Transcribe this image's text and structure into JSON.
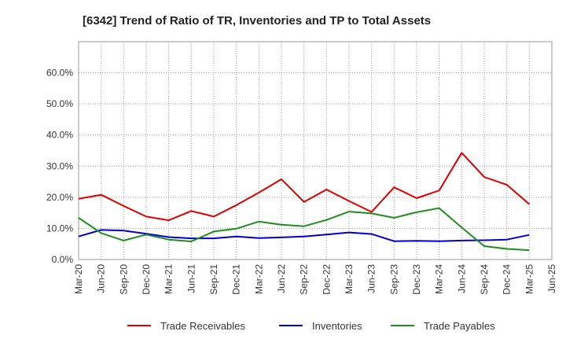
{
  "chart_data": {
    "type": "line",
    "title": "[6342]  Trend of Ratio of TR, Inventories and TP to Total Assets",
    "xlabel": "",
    "ylabel": "",
    "ylim": [
      0,
      0.7
    ],
    "yticks": [
      0,
      0.1,
      0.2,
      0.3,
      0.4,
      0.5,
      0.6
    ],
    "ytick_labels": [
      "0.0%",
      "10.0%",
      "20.0%",
      "30.0%",
      "40.0%",
      "50.0%",
      "60.0%"
    ],
    "grid": true,
    "legend_position": "bottom",
    "x_tick_labels": [
      "Mar-20",
      "Jun-20",
      "Sep-20",
      "Dec-20",
      "Mar-21",
      "Jun-21",
      "Sep-21",
      "Dec-21",
      "Mar-22",
      "Jun-22",
      "Sep-22",
      "Dec-22",
      "Mar-23",
      "Jun-23",
      "Sep-23",
      "Dec-23",
      "Mar-24",
      "Jun-24",
      "Sep-24",
      "Dec-24",
      "Mar-25",
      "Jun-25"
    ],
    "x": [
      "Mar-20",
      "Jun-20",
      "Sep-20",
      "Dec-20",
      "Mar-21",
      "Jun-21",
      "Sep-21",
      "Dec-21",
      "Mar-22",
      "Jun-22",
      "Sep-22",
      "Dec-22",
      "Mar-23",
      "Jun-23",
      "Sep-23",
      "Dec-23",
      "Mar-24",
      "Jun-24",
      "Sep-24",
      "Dec-24",
      "Mar-25"
    ],
    "series": [
      {
        "name": "Trade Receivables",
        "color": "#e00000",
        "values": [
          0.195,
          0.208,
          0.172,
          0.138,
          0.126,
          0.156,
          0.138,
          0.175,
          0.215,
          0.258,
          0.185,
          0.225,
          0.188,
          0.153,
          0.232,
          0.197,
          0.222,
          0.343,
          0.265,
          0.24,
          0.178
        ]
      },
      {
        "name": "Inventories",
        "color": "#0000cc",
        "values": [
          0.074,
          0.095,
          0.093,
          0.083,
          0.072,
          0.068,
          0.068,
          0.074,
          0.069,
          0.071,
          0.074,
          0.08,
          0.087,
          0.082,
          0.059,
          0.06,
          0.059,
          0.061,
          0.062,
          0.064,
          0.079
        ]
      },
      {
        "name": "Trade Payables",
        "color": "#228b22",
        "values": [
          0.134,
          0.085,
          0.061,
          0.08,
          0.064,
          0.058,
          0.09,
          0.099,
          0.122,
          0.112,
          0.107,
          0.127,
          0.154,
          0.148,
          0.134,
          0.152,
          0.165,
          0.103,
          0.043,
          0.034,
          0.03
        ]
      }
    ]
  }
}
